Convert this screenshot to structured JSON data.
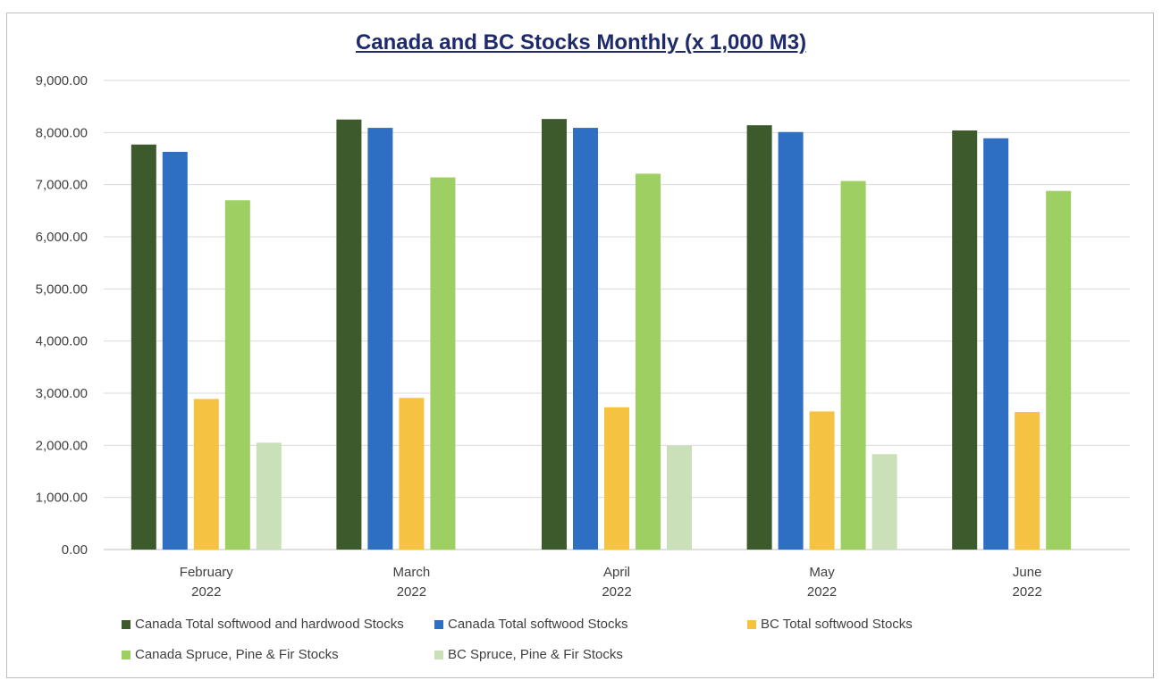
{
  "chart_data": {
    "type": "bar",
    "title": "Canada and BC Stocks  Monthly (x 1,000 M3)",
    "xlabel": "",
    "ylabel": "",
    "ylim": [
      0,
      9000
    ],
    "yticks": [
      "0.00",
      "1,000.00",
      "2,000.00",
      "3,000.00",
      "4,000.00",
      "5,000.00",
      "6,000.00",
      "7,000.00",
      "8,000.00",
      "9,000.00"
    ],
    "grid": true,
    "legend_position": "bottom",
    "categories": [
      {
        "month": "February",
        "year": "2022"
      },
      {
        "month": "March",
        "year": "2022"
      },
      {
        "month": "April",
        "year": "2022"
      },
      {
        "month": "May",
        "year": "2022"
      },
      {
        "month": "June",
        "year": "2022"
      }
    ],
    "series": [
      {
        "name": "Canada Total softwood and hardwood Stocks",
        "color": "#3d5a2c",
        "values": [
          7770,
          8250,
          8260,
          8140,
          8040
        ]
      },
      {
        "name": "Canada Total softwood Stocks",
        "color": "#2e6fc4",
        "values": [
          7630,
          8090,
          8090,
          8010,
          7890
        ]
      },
      {
        "name": "BC Total softwood Stocks",
        "color": "#f5c242",
        "values": [
          2890,
          2910,
          2730,
          2650,
          2640
        ]
      },
      {
        "name": "Canada Spruce, Pine & Fir Stocks",
        "color": "#9ecf63",
        "values": [
          6700,
          7140,
          7210,
          7070,
          6880
        ]
      },
      {
        "name": "BC Spruce, Pine & Fir Stocks",
        "color": "#c9e0b8",
        "values": [
          2050,
          null,
          1990,
          1830,
          null
        ]
      }
    ]
  }
}
